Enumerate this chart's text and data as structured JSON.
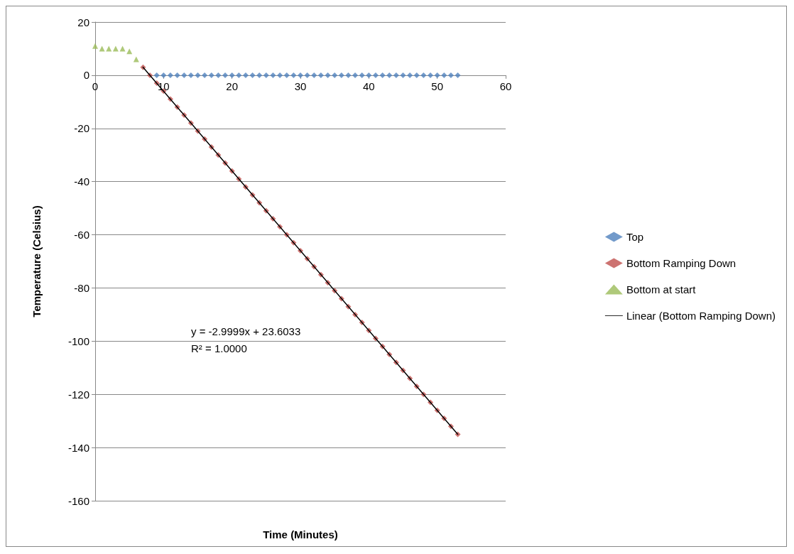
{
  "chart_data": {
    "type": "scatter",
    "xlabel": "Time (Minutes)",
    "ylabel": "Temperature (Celsius)",
    "xlim": [
      0,
      60
    ],
    "xticks": [
      0,
      10,
      20,
      30,
      40,
      50,
      60
    ],
    "ylim": [
      -160,
      20
    ],
    "yticks": [
      -160,
      -140,
      -120,
      -100,
      -80,
      -60,
      -40,
      -20,
      0,
      20
    ],
    "grid": "y",
    "legend": "right",
    "annotations": [
      "y = -2.9999x + 23.6033",
      "R² = 1.0000"
    ],
    "series": [
      {
        "name": "Top",
        "color": "#4f81bd",
        "marker": "diamond",
        "x": [
          9,
          10,
          11,
          12,
          13,
          14,
          15,
          16,
          17,
          18,
          19,
          20,
          21,
          22,
          23,
          24,
          25,
          26,
          27,
          28,
          29,
          30,
          31,
          32,
          33,
          34,
          35,
          36,
          37,
          38,
          39,
          40,
          41,
          42,
          43,
          44,
          45,
          46,
          47,
          48,
          49,
          50,
          51,
          52,
          53
        ],
        "values": [
          0,
          0,
          0,
          0,
          0,
          0,
          0,
          0,
          0,
          0,
          0,
          0,
          0,
          0,
          0,
          0,
          0,
          0,
          0,
          0,
          0,
          0,
          0,
          0,
          0,
          0,
          0,
          0,
          0,
          0,
          0,
          0,
          0,
          0,
          0,
          0,
          0,
          0,
          0,
          0,
          0,
          0,
          0,
          0,
          0
        ]
      },
      {
        "name": "Bottom Ramping Down",
        "color": "#c0504d",
        "marker": "diamond",
        "x": [
          7,
          8,
          9,
          10,
          11,
          12,
          13,
          14,
          15,
          16,
          17,
          18,
          19,
          20,
          21,
          22,
          23,
          24,
          25,
          26,
          27,
          28,
          29,
          30,
          31,
          32,
          33,
          34,
          35,
          36,
          37,
          38,
          39,
          40,
          41,
          42,
          43,
          44,
          45,
          46,
          47,
          48,
          49,
          50,
          51,
          52,
          53
        ],
        "values": [
          3,
          0,
          -3,
          -6,
          -9,
          -12,
          -15,
          -18,
          -21,
          -24,
          -27,
          -30,
          -33,
          -36,
          -39,
          -42,
          -45,
          -48,
          -51,
          -54,
          -57,
          -60,
          -63,
          -66,
          -69,
          -72,
          -75,
          -78,
          -81,
          -84,
          -87,
          -90,
          -93,
          -96,
          -99,
          -102,
          -105,
          -108,
          -111,
          -114,
          -117,
          -120,
          -123,
          -126,
          -129,
          -132,
          -135
        ]
      },
      {
        "name": "Bottom at start",
        "color": "#9bbb59",
        "marker": "triangle",
        "x": [
          0,
          1,
          2,
          3,
          4,
          5,
          6
        ],
        "values": [
          11,
          10,
          10,
          10,
          10,
          9,
          6
        ]
      },
      {
        "name": "Linear (Bottom Ramping Down)",
        "type": "line",
        "color": "#000000",
        "marker": "none",
        "line_style": "solid",
        "x": [
          7,
          53
        ],
        "values": [
          3,
          -135
        ]
      }
    ]
  }
}
